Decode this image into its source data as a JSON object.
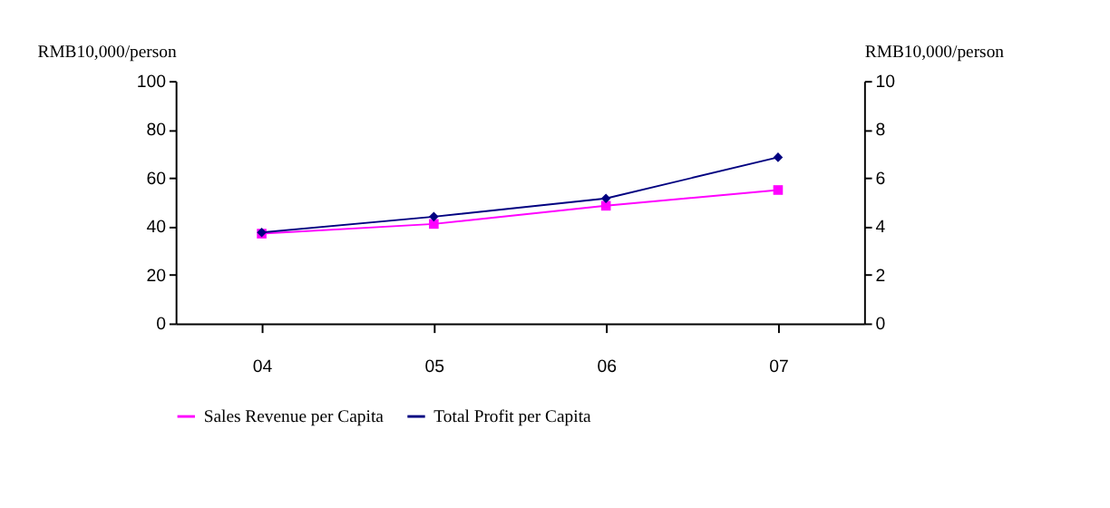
{
  "chart_data": {
    "type": "line",
    "categories": [
      "04",
      "05",
      "06",
      "07"
    ],
    "ylabel": "RMB10,000/person",
    "y2label": "RMB10,000/person",
    "ylim": [
      0,
      100
    ],
    "yticks": [
      0,
      20,
      40,
      60,
      80,
      100
    ],
    "y2lim": [
      0,
      10
    ],
    "y2ticks": [
      0,
      2,
      4,
      6,
      8,
      10
    ],
    "series": [
      {
        "name": "Sales Revenue per Capita",
        "color": "#ff00ff",
        "values": [
          37,
          41,
          48.5,
          55
        ],
        "marker": "square"
      },
      {
        "name": "Total Profit per Capita",
        "color": "#000080",
        "values": [
          3.75,
          4.4,
          5.15,
          6.85
        ],
        "marker": "diamond",
        "axis": "y2"
      }
    ],
    "legend": "bottom",
    "grid": false,
    "line_style": "solid"
  }
}
